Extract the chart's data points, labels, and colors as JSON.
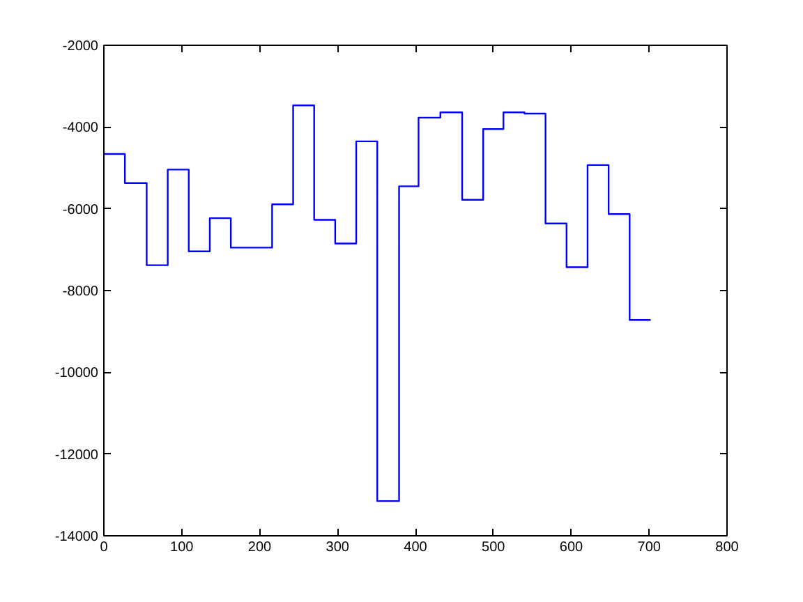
{
  "chart_data": {
    "type": "step",
    "color": "#0000ff",
    "x": [
      0,
      27,
      55,
      82,
      109,
      136,
      163,
      216,
      243,
      270,
      297,
      324,
      351,
      379,
      404,
      432,
      460,
      487,
      513,
      540,
      567,
      594,
      621,
      648,
      675,
      702
    ],
    "values": [
      -4660,
      -5370,
      -7380,
      -5040,
      -7040,
      -6230,
      -6950,
      -5890,
      -3470,
      -6270,
      -6850,
      -4350,
      -13150,
      -5450,
      -3770,
      -3640,
      -5780,
      -4050,
      -3640,
      -3670,
      -6360,
      -7430,
      -4930,
      -6130,
      -8720,
      -8720
    ],
    "xlim": [
      0,
      800
    ],
    "ylim": [
      -14000,
      -2000
    ],
    "xticks": [
      0,
      100,
      200,
      300,
      400,
      500,
      600,
      700,
      800
    ],
    "yticks": [
      -14000,
      -12000,
      -10000,
      -8000,
      -6000,
      -4000,
      -2000
    ]
  }
}
